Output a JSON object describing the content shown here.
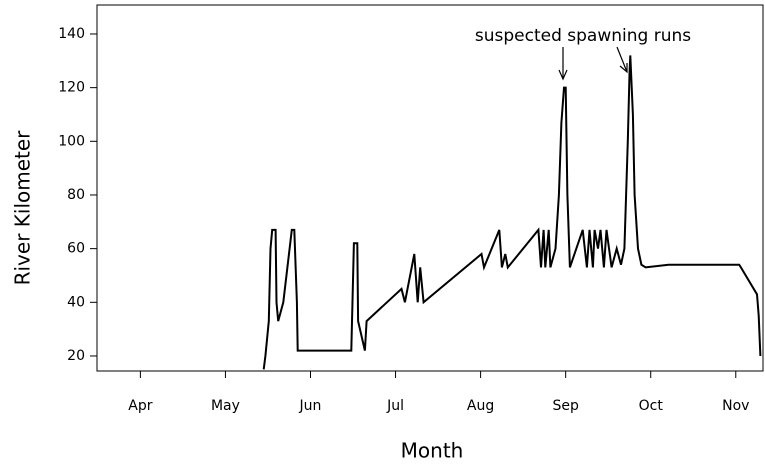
{
  "chart_data": {
    "type": "line",
    "xlabel": "Month",
    "ylabel": "River Kilometer",
    "annotation": "suspected spawning runs",
    "x": [
      2.45,
      2.47,
      2.51,
      2.53,
      2.55,
      2.59,
      2.6,
      2.62,
      2.68,
      2.78,
      2.81,
      2.84,
      2.85,
      3.48,
      3.51,
      3.55,
      3.56,
      3.64,
      3.66,
      4.07,
      4.11,
      4.22,
      4.26,
      4.29,
      4.33,
      5.01,
      5.04,
      5.22,
      5.25,
      5.29,
      5.32,
      5.68,
      5.71,
      5.74,
      5.76,
      5.8,
      5.82,
      5.88,
      5.92,
      5.95,
      5.98,
      6.0,
      6.02,
      6.05,
      6.2,
      6.25,
      6.28,
      6.32,
      6.34,
      6.38,
      6.41,
      6.45,
      6.48,
      6.54,
      6.6,
      6.65,
      6.69,
      6.73,
      6.75,
      6.76,
      6.79,
      6.81,
      6.85,
      6.89,
      6.94,
      7.21,
      8.04,
      8.06,
      8.25,
      8.27,
      8.29
    ],
    "series": [
      {
        "color": "#000000",
        "values": [
          15,
          20,
          33,
          60,
          67,
          67,
          40,
          33,
          40,
          67,
          67,
          40,
          22,
          22,
          62,
          62,
          33,
          22,
          33,
          45,
          40,
          58,
          40,
          53,
          40,
          58,
          53,
          67,
          53,
          58,
          53,
          67,
          53,
          67,
          53,
          67,
          53,
          60,
          80,
          107,
          120,
          120,
          80,
          53,
          67,
          53,
          67,
          53,
          67,
          60,
          67,
          53,
          67,
          53,
          60,
          54,
          60,
          100,
          125,
          132,
          110,
          80,
          60,
          54,
          53,
          54,
          54,
          53,
          43,
          35,
          20
        ]
      }
    ],
    "xlim": [
      0.49,
      8.32
    ],
    "ylim": [
      14.4,
      150.8
    ],
    "xticks": [
      {
        "value": 1,
        "label": "Apr"
      },
      {
        "value": 2,
        "label": "May"
      },
      {
        "value": 3,
        "label": "Jun"
      },
      {
        "value": 4,
        "label": "Jul"
      },
      {
        "value": 5,
        "label": "Aug"
      },
      {
        "value": 6,
        "label": "Sep"
      },
      {
        "value": 7,
        "label": "Oct"
      },
      {
        "value": 8,
        "label": "Nov"
      }
    ],
    "yticks": [
      20,
      40,
      60,
      80,
      100,
      120,
      140
    ]
  }
}
